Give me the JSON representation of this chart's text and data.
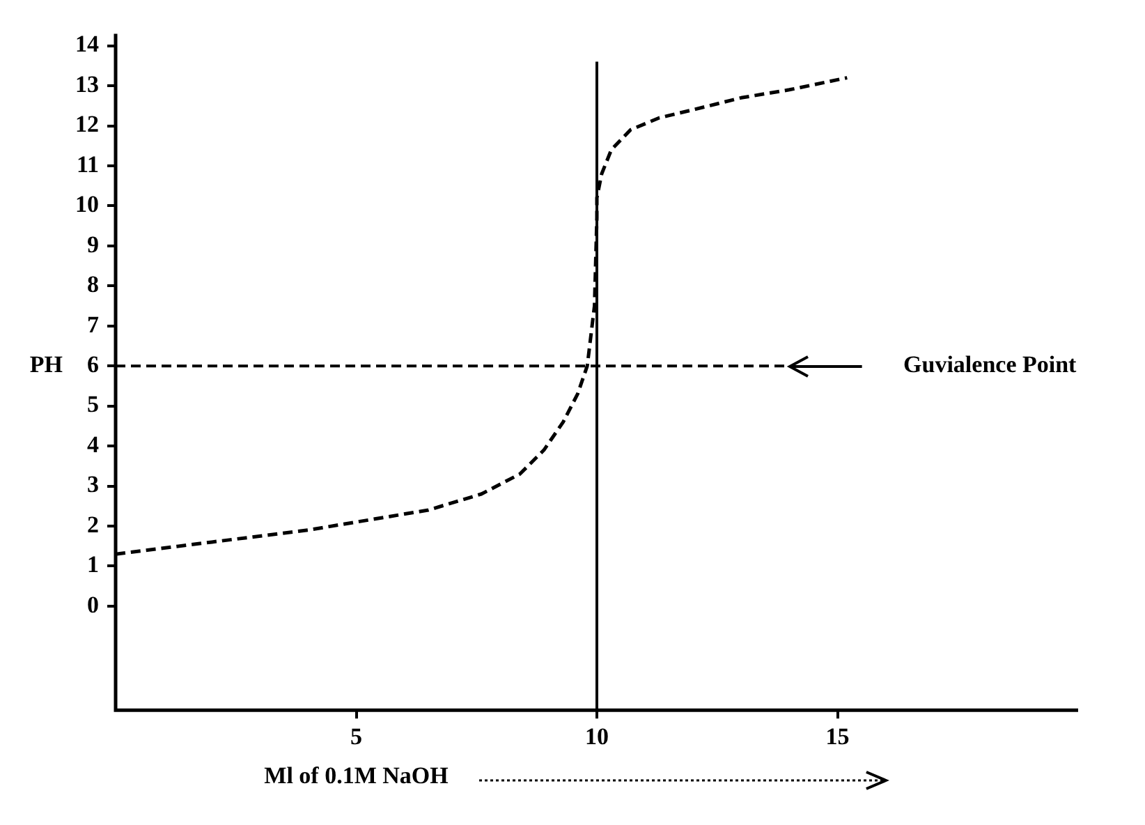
{
  "chart_data": {
    "type": "line",
    "xlabel": "Ml of 0.1M NaOH",
    "ylabel": "PH",
    "x": [
      0,
      2,
      4,
      5,
      6.5,
      7.6,
      8.4,
      8.9,
      9.3,
      9.6,
      9.8,
      9.95,
      10,
      10,
      10.1,
      10.3,
      10.7,
      11.3,
      12,
      13,
      14,
      15.2
    ],
    "series": [
      {
        "color": "#000000",
        "values": [
          1.3,
          1.6,
          1.9,
          2.1,
          2.4,
          2.8,
          3.3,
          3.9,
          4.6,
          5.3,
          6,
          7.5,
          9.7,
          10.2,
          10.8,
          11.4,
          11.9,
          12.2,
          12.4,
          12.7,
          12.9,
          13.2
        ]
      }
    ],
    "xlim": [
      0,
      20
    ],
    "xticks": [
      5,
      10,
      15
    ],
    "ylim": [
      -2.6,
      14.3
    ],
    "yticks": [
      0,
      1,
      2,
      3,
      4,
      5,
      6,
      7,
      8,
      9,
      10,
      11,
      12,
      13,
      14
    ],
    "grid": false,
    "legend": false,
    "marker": "none",
    "line_style": "dashed",
    "ref_lines": [
      {
        "axis": "x",
        "value": 10,
        "line_style": "solid"
      },
      {
        "axis": "y",
        "value": 6,
        "label": "Guvialence Point",
        "line_style": "dashed"
      }
    ]
  }
}
